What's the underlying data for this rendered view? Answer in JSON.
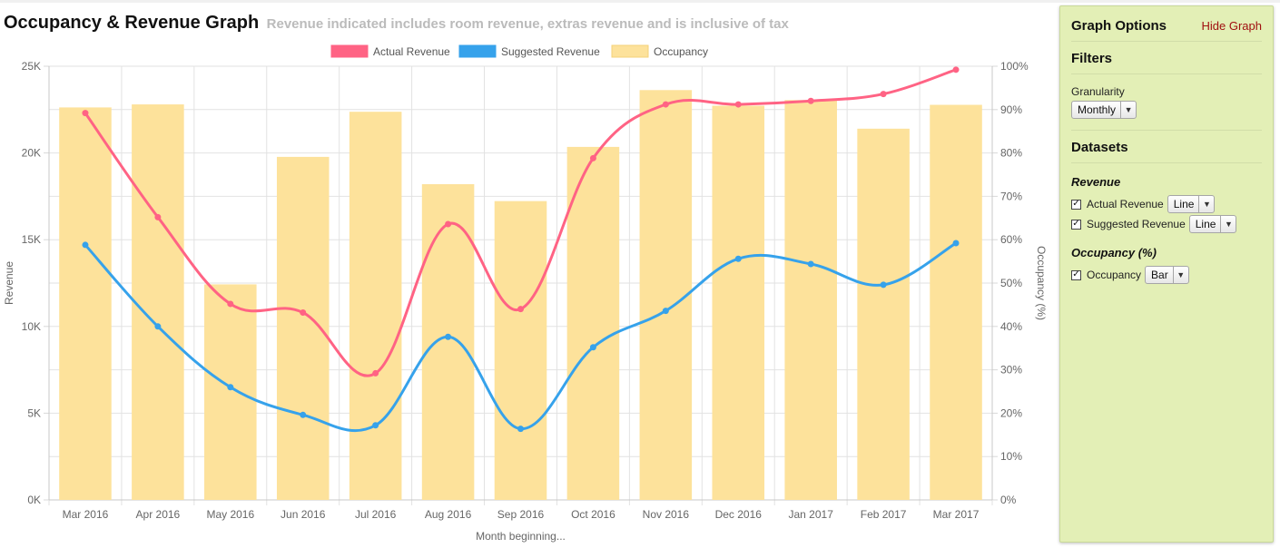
{
  "header": {
    "title": "Occupancy & Revenue Graph",
    "subtitle": "Revenue indicated includes room revenue, extras revenue and is inclusive of tax"
  },
  "chart_data": {
    "type": "bar",
    "categories": [
      "Mar 2016",
      "Apr 2016",
      "May 2016",
      "Jun 2016",
      "Jul 2016",
      "Aug 2016",
      "Sep 2016",
      "Oct 2016",
      "Nov 2016",
      "Dec 2016",
      "Jan 2017",
      "Feb 2017",
      "Mar 2017"
    ],
    "series": [
      {
        "name": "Actual Revenue",
        "type": "line",
        "axis": "left",
        "color": "#ff6384",
        "values": [
          22300,
          16300,
          11300,
          10800,
          7300,
          15900,
          11000,
          19700,
          22800,
          22800,
          23000,
          23400,
          24800
        ]
      },
      {
        "name": "Suggested Revenue",
        "type": "line",
        "axis": "left",
        "color": "#36a2eb",
        "values": [
          14700,
          10000,
          6500,
          4900,
          4300,
          9400,
          4100,
          8800,
          10900,
          13900,
          13600,
          12400,
          14800
        ]
      },
      {
        "name": "Occupancy",
        "type": "bar",
        "axis": "right",
        "color": "#fde29b",
        "values": [
          90.5,
          91.2,
          49.7,
          79.1,
          89.5,
          72.8,
          68.9,
          81.4,
          94.5,
          90.9,
          92.2,
          85.6,
          91.1
        ]
      }
    ],
    "xlabel": "Month beginning...",
    "ylabel": "Revenue",
    "y2label": "Occupancy (%)",
    "ylim": [
      0,
      25000
    ],
    "y2lim": [
      0,
      100
    ],
    "yticks": [
      "0K",
      "5K",
      "10K",
      "15K",
      "20K",
      "25K"
    ],
    "y2ticks": [
      "0%",
      "10%",
      "20%",
      "30%",
      "40%",
      "50%",
      "60%",
      "70%",
      "80%",
      "90%",
      "100%"
    ],
    "legend": "top-center",
    "grid": true
  },
  "panel": {
    "title": "Graph Options",
    "hide_label": "Hide Graph",
    "filters_title": "Filters",
    "granularity_label": "Granularity",
    "granularity_value": "Monthly",
    "datasets_title": "Datasets",
    "revenue_group": "Revenue",
    "occupancy_group": "Occupancy (%)",
    "actual_revenue": {
      "label": "Actual Revenue",
      "checked": true,
      "type": "Line"
    },
    "suggested_revenue": {
      "label": "Suggested Revenue",
      "checked": true,
      "type": "Line"
    },
    "occupancy": {
      "label": "Occupancy",
      "checked": true,
      "type": "Bar"
    }
  }
}
